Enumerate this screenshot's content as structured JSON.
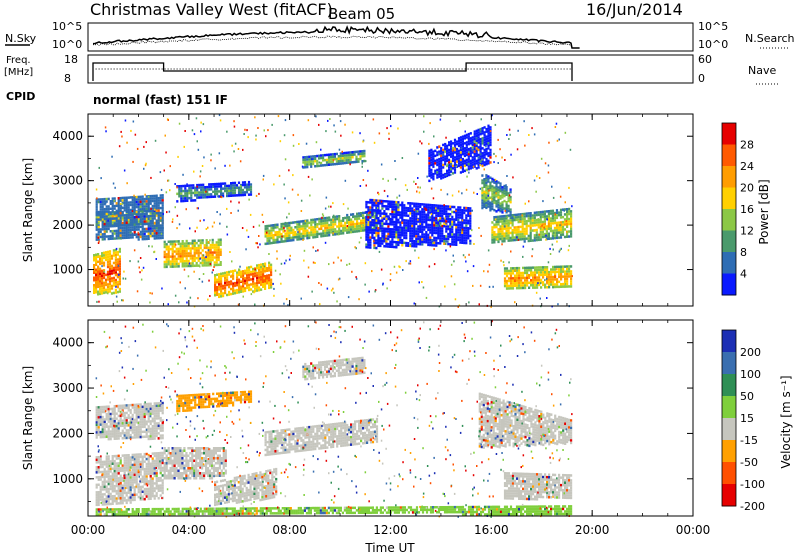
{
  "header": {
    "radar": "Christmas Valley West (fitACF)",
    "beam": "Beam 05",
    "date": "16/Jun/2014"
  },
  "summary": {
    "nsky_label": "N.Sky",
    "nsky_ticks": [
      "10^5",
      "10^0"
    ],
    "nsearch_label": "N.Search",
    "nsearch_ticks": [
      "10^5",
      "10^0"
    ],
    "freq_label": "Freq.",
    "freq_unit": "[MHz]",
    "freq_ticks": [
      "18",
      "8"
    ],
    "nave_label": "Nave",
    "nave_ticks": [
      "60",
      "0"
    ],
    "cpid_label": "CPID",
    "cpid_value": "normal (fast) 151 IF"
  },
  "chart_data": [
    {
      "type": "heatmap",
      "name": "power",
      "ylabel": "Slant Range [km]",
      "yticks": [
        "4000",
        "3000",
        "2000",
        "1000"
      ],
      "ylim": [
        180,
        4500
      ],
      "colorbar": {
        "title": "Power [dB]",
        "labels": [
          "28",
          "24",
          "20",
          "16",
          "12",
          "8",
          "4"
        ],
        "colors": [
          "#e60000",
          "#ff5a00",
          "#ff9d00",
          "#ffd000",
          "#8cc846",
          "#4a9a6c",
          "#2e6db4",
          "#0a1aff"
        ]
      },
      "bands": [
        {
          "x": [
            0.3,
            2.6
          ],
          "y0": [
            2000,
            2050
          ],
          "y1": [
            2300,
            2350
          ],
          "level": 2
        },
        {
          "x": [
            2.6,
            3.0
          ],
          "y0": [
            1950,
            1950
          ],
          "y1": [
            2300,
            2300
          ],
          "level": 1
        },
        {
          "x": [
            3.0,
            5.3
          ],
          "y0": [
            1050,
            1100
          ],
          "y1": [
            1650,
            1700
          ],
          "level": 1
        },
        {
          "x": [
            0.2,
            1.3
          ],
          "y0": [
            450,
            500
          ],
          "y1": [
            1350,
            1500
          ],
          "level": 0
        },
        {
          "x": [
            5.0,
            7.3
          ],
          "y0": [
            400,
            600
          ],
          "y1": [
            900,
            1200
          ],
          "level": 0
        },
        {
          "x": [
            7.0,
            11.5
          ],
          "y0": [
            1600,
            1900
          ],
          "y1": [
            2000,
            2350
          ],
          "level": 2
        },
        {
          "x": [
            8.5,
            11.0
          ],
          "y0": [
            3300,
            3450
          ],
          "y1": [
            3550,
            3700
          ],
          "level": 3
        },
        {
          "x": [
            3.5,
            6.5
          ],
          "y0": [
            2550,
            2700
          ],
          "y1": [
            2900,
            3000
          ],
          "level": 4
        },
        {
          "x": [
            16.0,
            19.2
          ],
          "y0": [
            1600,
            1750
          ],
          "y1": [
            2200,
            2400
          ],
          "level": 2
        },
        {
          "x": [
            15.6,
            16.8
          ],
          "y0": [
            2400,
            2250
          ],
          "y1": [
            3200,
            2800
          ],
          "level": 3
        },
        {
          "x": [
            16.5,
            19.2
          ],
          "y0": [
            550,
            600
          ],
          "y1": [
            1050,
            1100
          ],
          "level": 1
        },
        {
          "x": [
            0.3,
            3.0
          ],
          "y0": [
            1700,
            1700
          ],
          "y1": [
            2600,
            2700
          ],
          "level": 6
        },
        {
          "x": [
            11.0,
            15.2
          ],
          "y0": [
            1500,
            1600
          ],
          "y1": [
            2600,
            2400
          ],
          "level": 7
        },
        {
          "x": [
            13.5,
            16.0
          ],
          "y0": [
            3000,
            3400
          ],
          "y1": [
            3700,
            4300
          ],
          "level": 7
        }
      ]
    },
    {
      "type": "heatmap",
      "name": "velocity",
      "xlabel": "Time UT",
      "xticks": [
        "00:00",
        "04:00",
        "08:00",
        "12:00",
        "16:00",
        "20:00",
        "00:00"
      ],
      "xlim": [
        0,
        24
      ],
      "ylabel": "Slant Range [km]",
      "yticks": [
        "4000",
        "3000",
        "2000",
        "1000"
      ],
      "ylim": [
        180,
        4500
      ],
      "colorbar": {
        "title": "Velocity [m s⁻¹]",
        "labels": [
          "200",
          "100",
          "50",
          "15",
          "-15",
          "-50",
          "-100",
          "-200"
        ],
        "colors": [
          "#1c2fb4",
          "#3a6fb0",
          "#2f8f55",
          "#7fcf3c",
          "#c6c6be",
          "#ffa000",
          "#ff5000",
          "#e60000"
        ]
      },
      "bands": [
        {
          "x": [
            0.3,
            3.0
          ],
          "y0": [
            1900,
            1900
          ],
          "y1": [
            2600,
            2700
          ],
          "level": 4
        },
        {
          "x": [
            0.3,
            3.0
          ],
          "y0": [
            400,
            600
          ],
          "y1": [
            1500,
            1600
          ],
          "level": 4
        },
        {
          "x": [
            3.0,
            5.5
          ],
          "y0": [
            1000,
            1050
          ],
          "y1": [
            1700,
            1700
          ],
          "level": 4
        },
        {
          "x": [
            5.0,
            7.5
          ],
          "y0": [
            450,
            600
          ],
          "y1": [
            950,
            1250
          ],
          "level": 4
        },
        {
          "x": [
            7.0,
            11.5
          ],
          "y0": [
            1550,
            1850
          ],
          "y1": [
            2050,
            2350
          ],
          "level": 4
        },
        {
          "x": [
            8.5,
            11.0
          ],
          "y0": [
            3200,
            3350
          ],
          "y1": [
            3550,
            3700
          ],
          "level": 4
        },
        {
          "x": [
            15.5,
            19.2
          ],
          "y0": [
            1700,
            1800
          ],
          "y1": [
            2900,
            2300
          ],
          "level": 4
        },
        {
          "x": [
            16.5,
            19.2
          ],
          "y0": [
            550,
            600
          ],
          "y1": [
            1150,
            1100
          ],
          "level": 4
        },
        {
          "x": [
            3.5,
            6.5
          ],
          "y0": [
            2500,
            2700
          ],
          "y1": [
            2850,
            2950
          ],
          "level": 5
        },
        {
          "x": [
            0.3,
            19.2
          ],
          "y0": [
            200,
            250
          ],
          "y1": [
            350,
            420
          ],
          "level": 3
        }
      ]
    }
  ]
}
